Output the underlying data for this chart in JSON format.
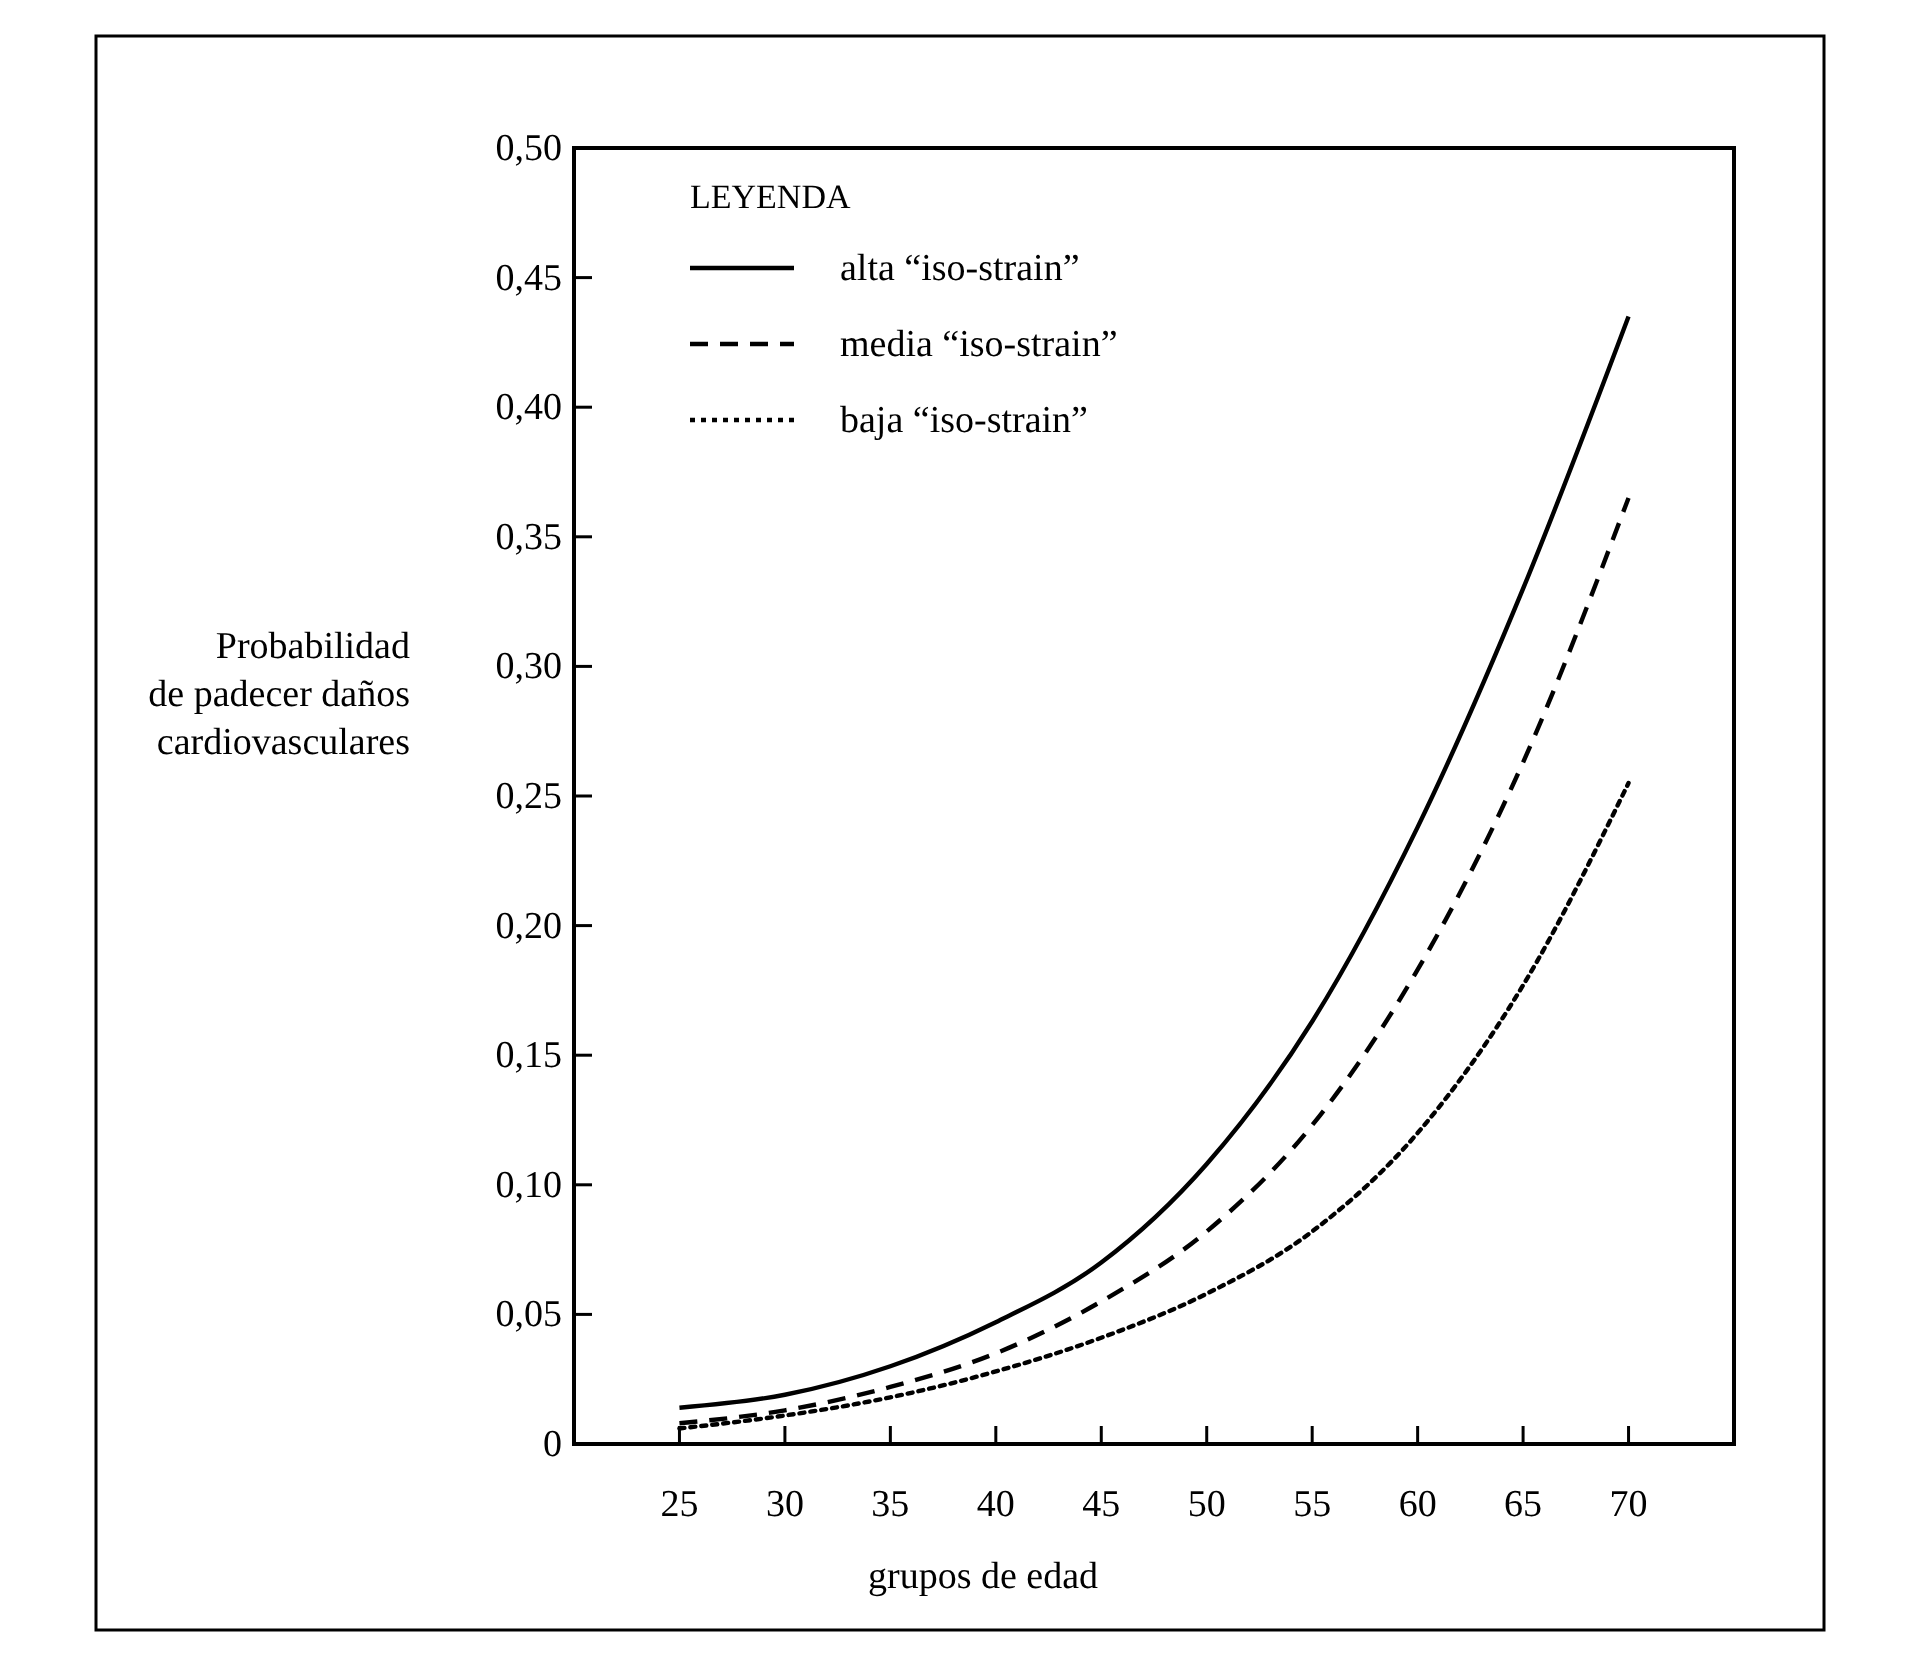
{
  "chart_data": {
    "type": "line",
    "xlabel": "grupos de edad",
    "ylabel": "Probabilidad\nde padecer daños\ncardiovasculares",
    "legend_title": "LEYENDA",
    "legend": "top left",
    "grid": false,
    "marker": "none",
    "x": [
      25,
      30,
      35,
      40,
      45,
      50,
      55,
      60,
      65,
      70
    ],
    "xlim": [
      20,
      75
    ],
    "xticks": [
      25,
      30,
      35,
      40,
      45,
      50,
      55,
      60,
      65,
      70
    ],
    "ylim": [
      0,
      0.5
    ],
    "yticks": [
      0,
      {
        "value": 0.05,
        "label": "0,05"
      },
      {
        "value": 0.1,
        "label": "0,10"
      },
      {
        "value": 0.15,
        "label": "0,15"
      },
      {
        "value": 0.2,
        "label": "0,20"
      },
      {
        "value": 0.25,
        "label": "0,25"
      },
      {
        "value": 0.3,
        "label": "0,30"
      },
      {
        "value": 0.35,
        "label": "0,35"
      },
      {
        "value": 0.4,
        "label": "0,40"
      },
      {
        "value": 0.45,
        "label": "0,45"
      },
      {
        "value": 0.5,
        "label": "0,50"
      }
    ],
    "series": [
      {
        "name": "alta “iso-strain”",
        "color": "#000000",
        "line_style": "solid",
        "values": [
          0.014,
          0.019,
          0.03,
          0.047,
          0.07,
          0.108,
          0.163,
          0.238,
          0.33,
          0.435
        ]
      },
      {
        "name": "media “iso-strain”",
        "color": "#000000",
        "line_style": "dashed",
        "values": [
          0.008,
          0.013,
          0.022,
          0.035,
          0.055,
          0.082,
          0.123,
          0.183,
          0.263,
          0.365
        ]
      },
      {
        "name": "baja “iso-strain”",
        "color": "#000000",
        "line_style": "dotted",
        "values": [
          0.006,
          0.011,
          0.018,
          0.028,
          0.041,
          0.058,
          0.082,
          0.12,
          0.177,
          0.255
        ]
      }
    ]
  }
}
